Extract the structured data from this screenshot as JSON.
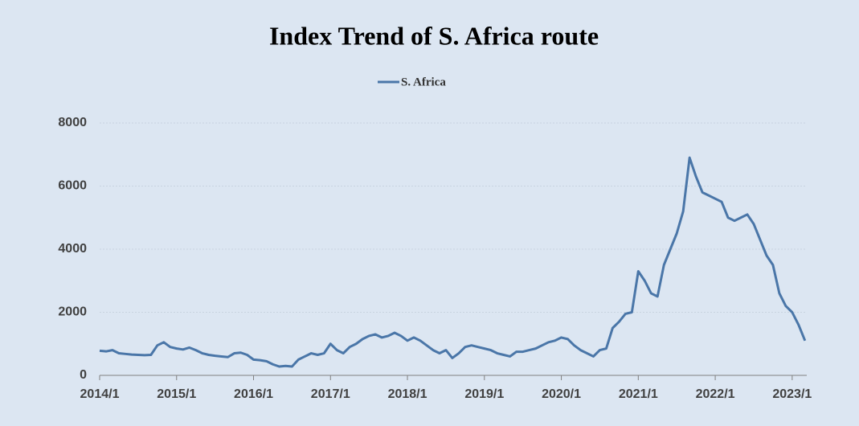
{
  "chart_data": {
    "type": "line",
    "title": "Index Trend of S. Africa route",
    "categories": [
      "2014/1",
      null,
      null,
      null,
      null,
      null,
      null,
      null,
      null,
      null,
      null,
      null,
      "2015/1",
      null,
      null,
      null,
      null,
      null,
      null,
      null,
      null,
      null,
      null,
      null,
      "2016/1",
      null,
      null,
      null,
      null,
      null,
      null,
      null,
      null,
      null,
      null,
      null,
      "2017/1",
      null,
      null,
      null,
      null,
      null,
      null,
      null,
      null,
      null,
      null,
      null,
      "2018/1",
      null,
      null,
      null,
      null,
      null,
      null,
      null,
      null,
      null,
      null,
      null,
      "2019/1",
      null,
      null,
      null,
      null,
      null,
      null,
      null,
      null,
      null,
      null,
      null,
      "2020/1",
      null,
      null,
      null,
      null,
      null,
      null,
      null,
      null,
      null,
      null,
      null,
      "2021/1",
      null,
      null,
      null,
      null,
      null,
      null,
      null,
      null,
      null,
      null,
      null,
      "2022/1",
      null,
      null,
      null,
      null,
      null,
      null,
      null,
      null,
      null,
      null,
      null,
      "2023/1",
      null,
      null
    ],
    "series": [
      {
        "name": "S. Africa",
        "color": "#4a76a8",
        "values": [
          780,
          760,
          800,
          700,
          680,
          660,
          650,
          640,
          650,
          950,
          1050,
          900,
          850,
          820,
          880,
          800,
          700,
          650,
          620,
          600,
          580,
          700,
          720,
          650,
          500,
          480,
          450,
          350,
          280,
          300,
          280,
          500,
          600,
          700,
          650,
          700,
          1000,
          800,
          700,
          900,
          1000,
          1150,
          1250,
          1300,
          1200,
          1250,
          1350,
          1250,
          1100,
          1200,
          1100,
          950,
          800,
          700,
          800,
          550,
          700,
          900,
          950,
          900,
          850,
          800,
          700,
          650,
          600,
          750,
          750,
          800,
          850,
          950,
          1050,
          1100,
          1200,
          1150,
          950,
          800,
          700,
          600,
          800,
          850,
          1500,
          1700,
          1950,
          2000,
          3300,
          3000,
          2600,
          2500,
          3500,
          4000,
          4500,
          5200,
          6900,
          6300,
          5800,
          5700,
          5600,
          5500,
          5000,
          4900,
          5000,
          5100,
          4800,
          4300,
          3800,
          3500,
          2600,
          2200,
          2000,
          1600,
          1100
        ]
      }
    ],
    "ylim": [
      0,
      8000
    ],
    "yticks": [
      0,
      2000,
      4000,
      6000,
      8000
    ],
    "grid": true,
    "legend": "top"
  }
}
